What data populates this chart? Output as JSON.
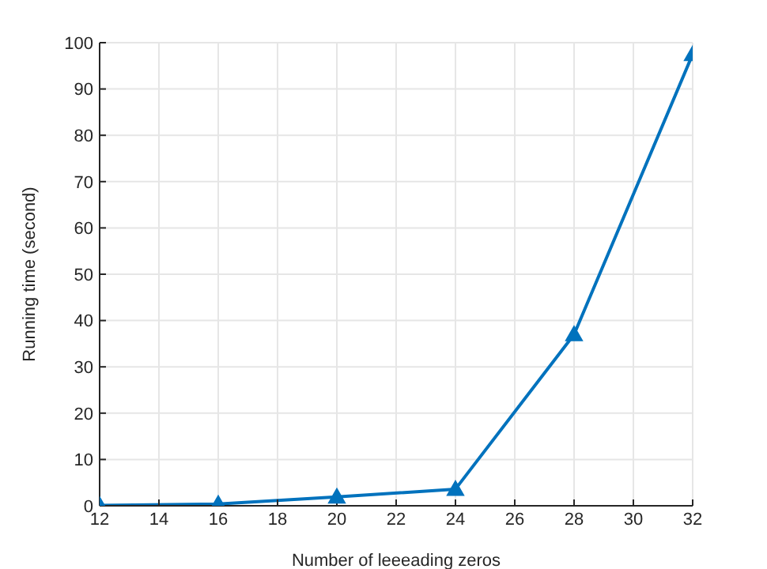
{
  "chart_data": {
    "type": "line",
    "xlabel": "Number of leeeading zeros",
    "ylabel": "Running time (second)",
    "x": [
      12,
      16,
      20,
      24,
      28,
      32
    ],
    "series": [
      {
        "color": "#0072bd",
        "values": [
          0.1,
          0.4,
          1.9,
          3.6,
          37,
          97.5
        ]
      }
    ],
    "xlim": [
      12,
      32
    ],
    "xticks": [
      12,
      14,
      16,
      18,
      20,
      22,
      24,
      26,
      28,
      30,
      32
    ],
    "ylim": [
      0,
      100
    ],
    "yticks": [
      0,
      10,
      20,
      30,
      40,
      50,
      60,
      70,
      80,
      90,
      100
    ],
    "grid": true,
    "marker": "triangle",
    "line_style": "solid"
  }
}
